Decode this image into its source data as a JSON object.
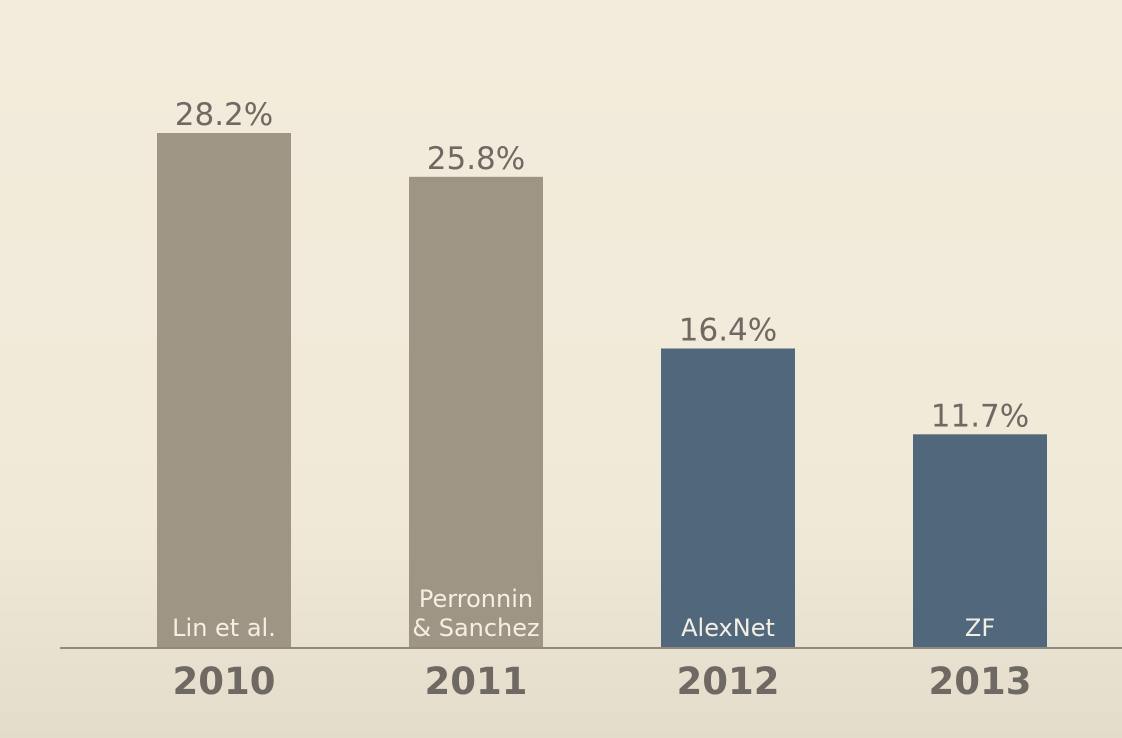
{
  "chart_data": {
    "type": "bar",
    "categories": [
      "2010",
      "2011",
      "2012",
      "2013"
    ],
    "values": [
      28.2,
      25.8,
      16.4,
      11.7
    ],
    "value_labels": [
      "28.2%",
      "25.8%",
      "16.4%",
      "11.7%"
    ],
    "bar_labels": [
      [
        "Lin et al."
      ],
      [
        "Perronnin",
        "& Sanchez"
      ],
      [
        "AlexNet"
      ],
      [
        "ZF"
      ]
    ],
    "colors": [
      "#9e9584",
      "#9e9584",
      "#51677c",
      "#51677c"
    ],
    "axis_color": "#8f897e",
    "ylim": [
      0,
      28.2
    ],
    "grid": false,
    "legend": "none"
  }
}
